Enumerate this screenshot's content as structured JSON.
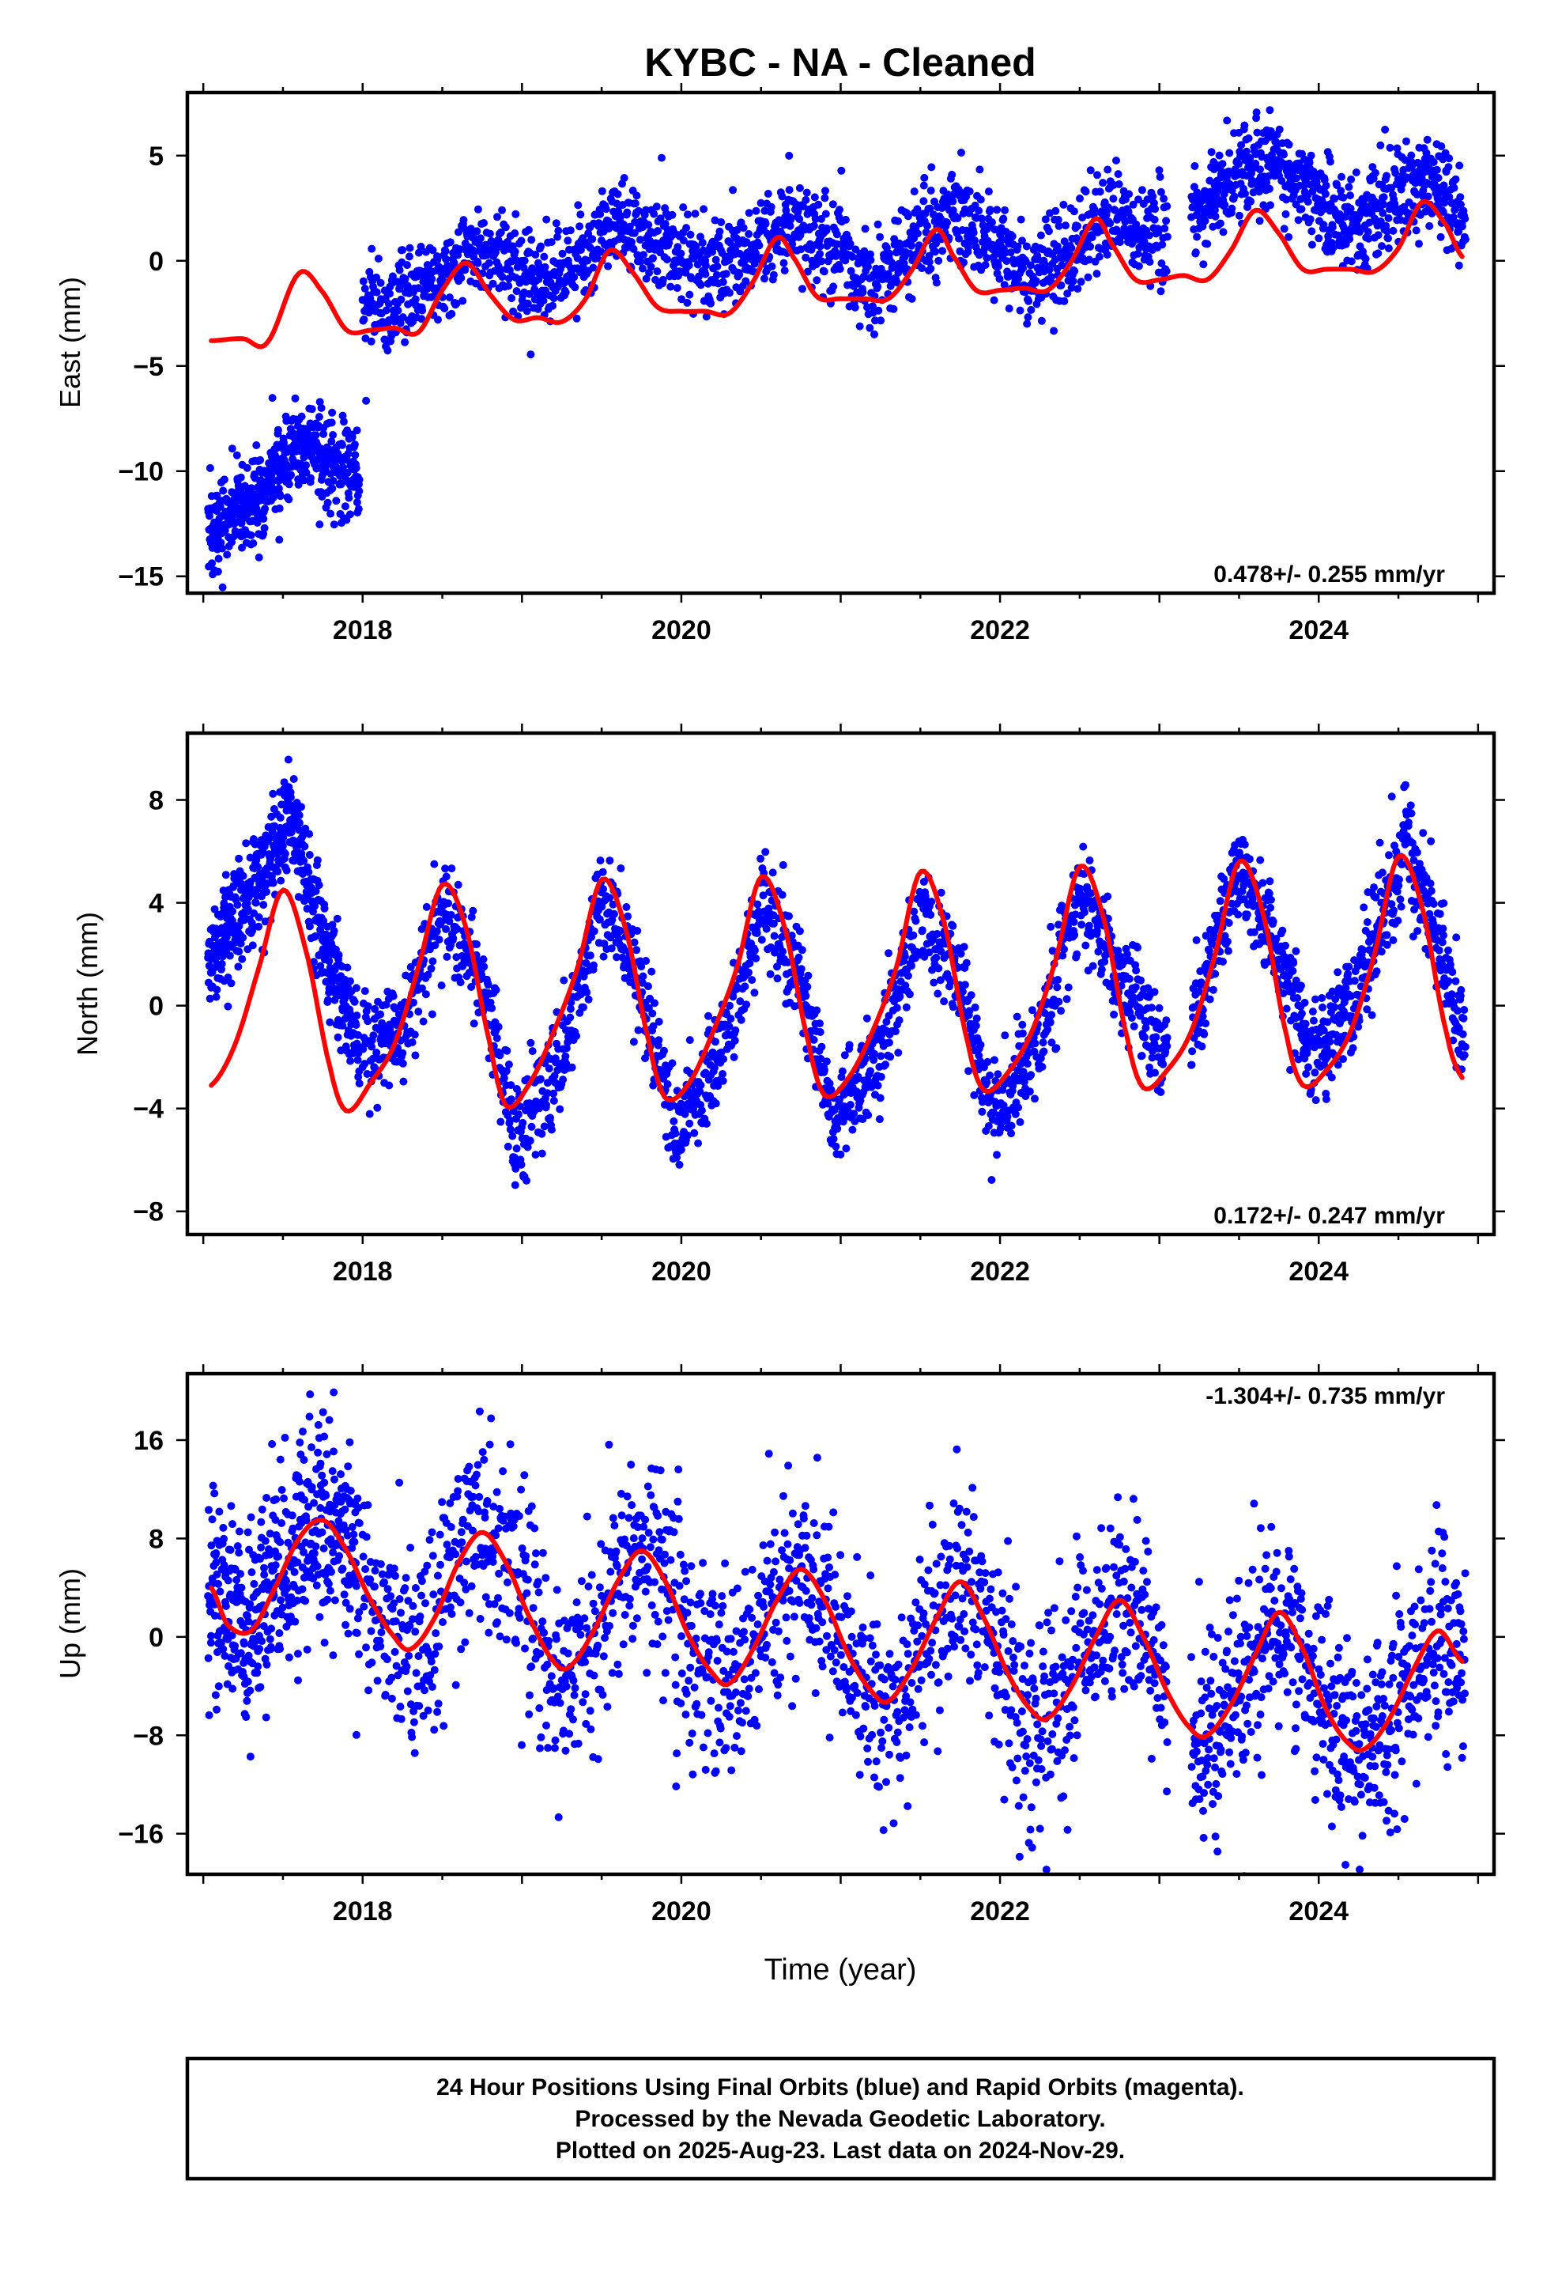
{
  "title": "KYBC  - NA - Cleaned",
  "xlabel": "Time (year)",
  "footer": {
    "lines": [
      "24 Hour Positions Using Final Orbits (blue) and Rapid Orbits (magenta).",
      "Processed by the Nevada Geodetic Laboratory.",
      "Plotted on 2025-Aug-23. Last data on 2024-Nov-29."
    ]
  },
  "colors": {
    "observations": "#0000ff",
    "model": "#ff0000",
    "axes": "#000000"
  },
  "chart_data": [
    {
      "type": "scatter",
      "component": "east",
      "ylabel": "East (mm)",
      "rate": "0.478+/- 0.255 mm/yr",
      "rate_position": "bottom-right",
      "xlim": [
        2016.9,
        2025.1
      ],
      "ylim": [
        -15.8,
        8.0
      ],
      "xticks": [
        2018,
        2020,
        2022,
        2024
      ],
      "xtick_labels": [
        "2018",
        "2020",
        "2022",
        "2024"
      ],
      "yticks": [
        5,
        0,
        -5,
        -10,
        -15
      ],
      "ytick_labels": [
        "5",
        "0",
        "−5",
        "−10",
        "−15"
      ],
      "grid": false,
      "model": {
        "name": "",
        "x": [
          2017.05,
          2017.25,
          2017.4,
          2017.6,
          2017.75,
          2017.9,
          2018.05,
          2018.2,
          2018.35,
          2018.5,
          2018.65,
          2018.8,
          2018.95,
          2019.1,
          2019.25,
          2019.4,
          2019.55,
          2019.7,
          2019.85,
          2020.0,
          2020.15,
          2020.3,
          2020.45,
          2020.6,
          2020.7,
          2020.85,
          2021.0,
          2021.15,
          2021.3,
          2021.45,
          2021.6,
          2021.7,
          2021.85,
          2022.0,
          2022.15,
          2022.3,
          2022.45,
          2022.6,
          2022.7,
          2022.85,
          2023.0,
          2023.15,
          2023.3,
          2023.45,
          2023.6,
          2023.75,
          2023.9,
          2024.05,
          2024.2,
          2024.35,
          2024.5,
          2024.65,
          2024.8,
          2024.9
        ],
        "y": [
          -3.8,
          -3.7,
          -3.9,
          -0.6,
          -1.5,
          -3.3,
          -3.3,
          -3.2,
          -3.4,
          -1.4,
          -0.1,
          -1.6,
          -2.8,
          -2.7,
          -2.9,
          -1.8,
          0.5,
          -0.6,
          -2.2,
          -2.4,
          -2.4,
          -2.5,
          -1.0,
          1.1,
          0.2,
          -1.7,
          -1.8,
          -1.8,
          -1.8,
          -0.4,
          1.5,
          0.3,
          -1.4,
          -1.4,
          -1.3,
          -1.4,
          0.0,
          2.0,
          0.8,
          -0.9,
          -0.9,
          -0.7,
          -0.9,
          0.5,
          2.4,
          1.3,
          -0.4,
          -0.4,
          -0.4,
          -0.5,
          0.6,
          2.8,
          1.7,
          0.2
        ]
      },
      "observations": {
        "segments": [
          {
            "x_start": 2017.03,
            "x_end": 2017.98,
            "points": 520
          },
          {
            "x_start": 2018.0,
            "x_end": 2023.05,
            "points": 1700
          },
          {
            "x_start": 2023.2,
            "x_end": 2024.92,
            "points": 650
          }
        ],
        "trend": {
          "x": [
            2017.03,
            2017.3,
            2017.6,
            2017.98,
            2018.0,
            2018.5,
            2018.7,
            2019.2,
            2019.6,
            2020.2,
            2020.7,
            2021.2,
            2021.7,
            2022.2,
            2022.7,
            2023.05,
            2023.2,
            2023.7,
            2024.2,
            2024.7,
            2024.92
          ],
          "y": [
            -13.0,
            -11.5,
            -8.8,
            -10.3,
            -2.5,
            -1.0,
            0.5,
            -1.0,
            2.0,
            -0.6,
            2.0,
            -1.0,
            2.5,
            -1.0,
            2.5,
            0.8,
            2.0,
            5.0,
            1.5,
            4.0,
            1.8
          ]
        },
        "scatter_sd": 1.1
      }
    },
    {
      "type": "scatter",
      "component": "north",
      "ylabel": "North (mm)",
      "rate": "0.172+/- 0.247 mm/yr",
      "rate_position": "bottom-right",
      "xlim": [
        2016.9,
        2025.1
      ],
      "ylim": [
        -8.9,
        10.6
      ],
      "xticks": [
        2018,
        2020,
        2022,
        2024
      ],
      "xtick_labels": [
        "2018",
        "2020",
        "2022",
        "2024"
      ],
      "yticks": [
        8,
        4,
        0,
        -4,
        -8
      ],
      "ytick_labels": [
        "8",
        "4",
        "0",
        "−4",
        "−8"
      ],
      "grid": false,
      "model": {
        "name": "",
        "x": [
          2017.05,
          2017.2,
          2017.35,
          2017.5,
          2017.65,
          2017.8,
          2017.9,
          2018.05,
          2018.2,
          2018.35,
          2018.5,
          2018.65,
          2018.8,
          2018.9,
          2019.05,
          2019.2,
          2019.35,
          2019.5,
          2019.65,
          2019.8,
          2019.9,
          2020.05,
          2020.2,
          2020.35,
          2020.5,
          2020.65,
          2020.8,
          2020.9,
          2021.05,
          2021.2,
          2021.35,
          2021.5,
          2021.65,
          2021.8,
          2021.9,
          2022.05,
          2022.2,
          2022.35,
          2022.5,
          2022.65,
          2022.8,
          2022.9,
          2023.05,
          2023.2,
          2023.35,
          2023.5,
          2023.65,
          2023.8,
          2023.9,
          2024.05,
          2024.2,
          2024.35,
          2024.5,
          2024.65,
          2024.8,
          2024.9
        ],
        "y": [
          -3.1,
          -1.5,
          1.5,
          4.5,
          2.0,
          -2.5,
          -4.1,
          -3.0,
          -1.5,
          1.5,
          4.7,
          3.0,
          -1.5,
          -3.9,
          -3.0,
          -1.0,
          1.5,
          4.9,
          3.0,
          -1.5,
          -3.6,
          -3.0,
          -1.0,
          1.5,
          5.0,
          3.0,
          -1.5,
          -3.5,
          -2.8,
          -1.0,
          1.5,
          5.2,
          3.2,
          -1.5,
          -3.3,
          -2.6,
          -1.0,
          1.8,
          5.4,
          3.4,
          -1.3,
          -3.2,
          -2.5,
          -1.0,
          2.0,
          5.6,
          3.6,
          -1.2,
          -3.1,
          -2.5,
          -1.0,
          2.0,
          5.8,
          3.8,
          -1.0,
          -2.8
        ]
      },
      "observations": {
        "segments": [
          {
            "x_start": 2017.03,
            "x_end": 2017.98,
            "points": 520
          },
          {
            "x_start": 2018.0,
            "x_end": 2023.05,
            "points": 1700
          },
          {
            "x_start": 2023.2,
            "x_end": 2024.92,
            "points": 650
          }
        ],
        "trend": {
          "x": [
            2017.03,
            2017.3,
            2017.55,
            2017.75,
            2017.98,
            2018.0,
            2018.25,
            2018.5,
            2018.75,
            2018.95,
            2019.25,
            2019.5,
            2019.75,
            2019.95,
            2020.25,
            2020.5,
            2020.75,
            2020.95,
            2021.25,
            2021.5,
            2021.75,
            2021.95,
            2022.25,
            2022.5,
            2022.75,
            2023.05,
            2023.2,
            2023.5,
            2023.75,
            2023.95,
            2024.25,
            2024.55,
            2024.75,
            2024.92
          ],
          "y": [
            1.5,
            4.5,
            7.5,
            2.5,
            -1.5,
            -1.5,
            -1.0,
            3.5,
            1.0,
            -5.0,
            -2.0,
            4.0,
            1.0,
            -5.0,
            -2.0,
            4.0,
            1.0,
            -4.5,
            -2.0,
            4.0,
            1.0,
            -4.5,
            -1.5,
            4.5,
            1.5,
            -2.0,
            -1.0,
            5.5,
            2.0,
            -2.0,
            0.5,
            6.5,
            2.5,
            -1.5
          ]
        },
        "scatter_sd": 1.0
      }
    },
    {
      "type": "scatter",
      "component": "up",
      "ylabel": "Up (mm)",
      "xlabel": "Time (year)",
      "rate": "-1.304+/- 0.735 mm/yr",
      "rate_position": "top-right",
      "xlim": [
        2016.9,
        2025.1
      ],
      "ylim": [
        -19.3,
        21.4
      ],
      "xticks": [
        2018,
        2020,
        2022,
        2024
      ],
      "xtick_labels": [
        "2018",
        "2020",
        "2022",
        "2024"
      ],
      "yticks": [
        16,
        8,
        0,
        -8,
        -16
      ],
      "ytick_labels": [
        "16",
        "8",
        "0",
        "−8",
        "−16"
      ],
      "grid": false,
      "model": {
        "name": "",
        "x": [
          2017.05,
          2017.15,
          2017.3,
          2017.45,
          2017.6,
          2017.75,
          2017.9,
          2018.05,
          2018.2,
          2018.3,
          2018.45,
          2018.6,
          2018.75,
          2018.9,
          2019.05,
          2019.2,
          2019.3,
          2019.45,
          2019.6,
          2019.75,
          2019.9,
          2020.05,
          2020.2,
          2020.3,
          2020.45,
          2020.6,
          2020.75,
          2020.9,
          2021.05,
          2021.2,
          2021.3,
          2021.45,
          2021.6,
          2021.75,
          2021.9,
          2022.05,
          2022.2,
          2022.3,
          2022.45,
          2022.6,
          2022.75,
          2022.9,
          2023.05,
          2023.2,
          2023.3,
          2023.45,
          2023.6,
          2023.75,
          2023.9,
          2024.05,
          2024.2,
          2024.3,
          2024.45,
          2024.6,
          2024.75,
          2024.9
        ],
        "y": [
          4.0,
          1.0,
          0.5,
          4.0,
          8.0,
          9.5,
          7.0,
          3.0,
          0.0,
          -1.0,
          1.5,
          6.0,
          8.5,
          6.0,
          1.5,
          -2.0,
          -2.4,
          0.5,
          4.5,
          7.0,
          4.5,
          0.0,
          -3.0,
          -3.8,
          -1.0,
          3.0,
          5.5,
          3.0,
          -1.5,
          -4.5,
          -5.2,
          -2.5,
          1.5,
          4.5,
          1.5,
          -3.0,
          -6.0,
          -6.6,
          -4.0,
          0.0,
          3.0,
          0.0,
          -4.5,
          -7.5,
          -8.0,
          -5.5,
          -1.5,
          2.0,
          -1.0,
          -6.0,
          -8.8,
          -9.0,
          -6.5,
          -2.5,
          0.5,
          -2.0
        ]
      },
      "observations": {
        "segments": [
          {
            "x_start": 2017.03,
            "x_end": 2017.98,
            "points": 480
          },
          {
            "x_start": 2018.0,
            "x_end": 2023.05,
            "points": 1500
          },
          {
            "x_start": 2023.2,
            "x_end": 2024.92,
            "points": 600
          }
        ],
        "scatter_sd": 4.2
      }
    }
  ]
}
